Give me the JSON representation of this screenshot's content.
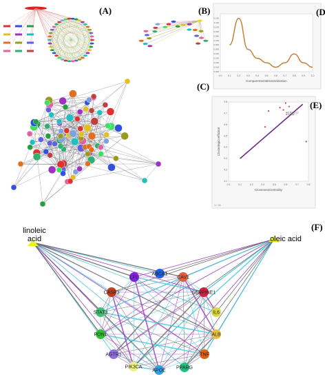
{
  "panels": {
    "A": "(A)",
    "B": "(B)",
    "C": "(C)",
    "D": "(D)",
    "E": "(E)",
    "F": "(F)"
  },
  "panel_d": {
    "xlabel": "ComparementalCentralization"
  },
  "panel_e": {
    "xlabel": "ClosenessCentrality",
    "ylabel": "ClusteringCoefficient",
    "footer": "1 / 41",
    "annotation_line1": "Adj R²=0.12",
    "annotation_line2": "R²=0.94"
  },
  "panel_f": {
    "compounds": [
      "linoleic\nacid",
      "oleic acid"
    ],
    "genes": [
      "ABCA1",
      "CAV1",
      "SERPINE1",
      "IL6",
      "ALB",
      "TNF",
      "PPARG",
      "APOE",
      "PIK3CA",
      "AGTR1",
      "PON1",
      "STAT3",
      "CASP3",
      "LPL"
    ]
  },
  "colors": {
    "line_d": "#c07a2a",
    "line_e": "#6a2a8a",
    "edge_cyan": "#48c8e0",
    "edge_gray": "#707070",
    "edge_purple": "#a040c0",
    "edge_yellow": "#d8e040"
  },
  "chart_data": [
    {
      "type": "line",
      "title": "",
      "xlabel": "ComparementalCentralization",
      "ylabel": "",
      "x": [
        0.0,
        0.1,
        0.2,
        0.3,
        0.4,
        0.5,
        0.6,
        0.7,
        0.8,
        0.9,
        1.0
      ],
      "series": [
        {
          "values": [
            0.01,
            0.06,
            0.12,
            0.05,
            0.03,
            0.02,
            0.01,
            0.02,
            0.04,
            0.02,
            0.01
          ]
        }
      ]
    },
    {
      "type": "scatter",
      "title": "",
      "xlabel": "ClosenessCentrality",
      "ylabel": "ClusteringCoefficient",
      "x": [
        0.42,
        0.45,
        0.55,
        0.58,
        0.6,
        0.63,
        0.78
      ],
      "series": [
        {
          "values": [
            0.58,
            0.72,
            0.75,
            0.73,
            0.79,
            0.76,
            0.45
          ]
        }
      ],
      "fit": {
        "x": [
          0.2,
          0.75
        ],
        "y": [
          0.3,
          0.78
        ]
      }
    }
  ]
}
